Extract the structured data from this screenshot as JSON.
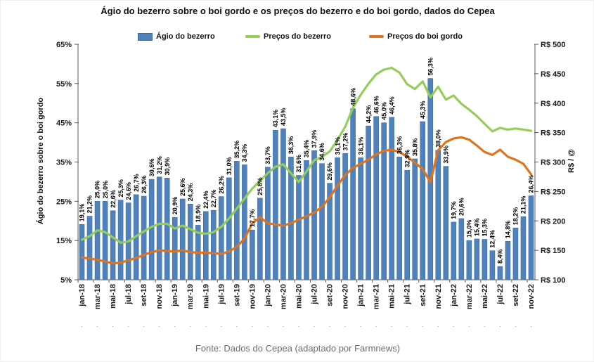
{
  "title": "Ágio do bezerro sobre o boi gordo e os preços do bezerro e do boi gordo, dados do Cepea",
  "footer": "Fonte: Dados do Cepea (adaptado por Farmnews)",
  "legend": {
    "agio": "Ágio do bezerro",
    "bezerro": "Preços do bezerro",
    "boi": "Preços do boi gordo"
  },
  "axes": {
    "left": {
      "title": "Ágio do bezerro sobre o boi gordo",
      "ticks": [
        "65%",
        "55%",
        "45%",
        "35%",
        "25%",
        "15%",
        "5%"
      ]
    },
    "right": {
      "title": "R$ / @",
      "ticks": [
        "R$ 500",
        "R$ 450",
        "R$ 400",
        "R$ 350",
        "R$ 300",
        "R$ 250",
        "R$ 200",
        "R$ 150",
        "R$ 100"
      ]
    }
  },
  "colors": {
    "bar": "#4f81bd",
    "bar_border": "#3d6da5",
    "bezerro_line": "#94ce58",
    "boi_line": "#e0731d",
    "axis": "#595959",
    "label": "#000000",
    "tick_text": "#1a1a1a",
    "dot_row": "#999999"
  },
  "chart_data": {
    "type": "bar",
    "subtype": "bar+line combo, dual axis",
    "title": "Ágio do bezerro sobre o boi gordo e os preços do bezerro e do boi gordo, dados do Cepea",
    "x": [
      "jan-18",
      "fev-18",
      "mar-18",
      "abr-18",
      "mai-18",
      "jun-18",
      "jul-18",
      "ago-18",
      "set-18",
      "out-18",
      "nov-18",
      "dez-18",
      "jan-19",
      "fev-19",
      "mar-19",
      "abr-19",
      "mai-19",
      "jun-19",
      "jul-19",
      "ago-19",
      "set-19",
      "out-19",
      "nov-19",
      "dez-19",
      "jan-20",
      "fev-20",
      "mar-20",
      "abr-20",
      "mai-20",
      "jun-20",
      "jul-20",
      "ago-20",
      "set-20",
      "out-20",
      "nov-20",
      "dez-20",
      "jan-21",
      "fev-21",
      "mar-21",
      "abr-21",
      "mai-21",
      "jun-21",
      "jul-21",
      "ago-21",
      "set-21",
      "out-21",
      "nov-21",
      "dez-21",
      "jan-22",
      "fev-22",
      "mar-22",
      "abr-22",
      "mai-22",
      "jun-22",
      "jul-22",
      "ago-22",
      "set-22",
      "out-22",
      "nov-22"
    ],
    "x_tick_step": 2,
    "left_axis_range": [
      5,
      65
    ],
    "right_axis_range": [
      100,
      500
    ],
    "ylabel_left": "Ágio do bezerro sobre o boi gordo",
    "ylabel_right": "R$ / @",
    "grid": false,
    "legend_position": "top",
    "series": [
      {
        "name": "Ágio do bezerro",
        "type": "bar",
        "axis": "left",
        "unit": "%",
        "values": [
          19.1,
          21.2,
          25.0,
          25.0,
          22.6,
          25.3,
          24.6,
          26.7,
          26.3,
          30.6,
          31.2,
          30.9,
          20.9,
          25.6,
          24.3,
          18.9,
          22.4,
          22.7,
          26.2,
          31.0,
          35.2,
          34.3,
          17.7,
          25.8,
          33.7,
          43.1,
          43.5,
          36.3,
          31.6,
          35.4,
          37.9,
          34.6,
          29.6,
          36.1,
          37.2,
          48.6,
          36.1,
          44.2,
          46.6,
          45.0,
          46.4,
          36.3,
          32.9,
          35.8,
          45.3,
          56.3,
          38.0,
          33.9,
          19.7,
          20.6,
          15.0,
          15.4,
          15.3,
          12.4,
          8.4,
          14.8,
          18.2,
          21.1,
          26.4
        ]
      },
      {
        "name": "Preços do bezerro",
        "type": "line",
        "axis": "right",
        "unit": "R$",
        "values": [
          168,
          174,
          184,
          181,
          172,
          163,
          165,
          174,
          182,
          190,
          195,
          195,
          187,
          192,
          186,
          180,
          178,
          181,
          190,
          204,
          221,
          238,
          255,
          268,
          281,
          292,
          296,
          281,
          266,
          284,
          303,
          309,
          318,
          338,
          360,
          392,
          414,
          433,
          449,
          457,
          460,
          452,
          432,
          424,
          437,
          410,
          428,
          406,
          413,
          399,
          389,
          378,
          365,
          352,
          358,
          355,
          357,
          355,
          353
        ]
      },
      {
        "name": "Preços do boi gordo",
        "type": "line",
        "axis": "right",
        "unit": "R$",
        "values": [
          138,
          136,
          134,
          131,
          128,
          129,
          133,
          137,
          142,
          147,
          150,
          149,
          148,
          150,
          147,
          146,
          146,
          145,
          144,
          148,
          156,
          170,
          196,
          206,
          196,
          194,
          192,
          196,
          202,
          208,
          214,
          224,
          240,
          260,
          278,
          290,
          297,
          304,
          313,
          319,
          321,
          317,
          309,
          299,
          288,
          266,
          320,
          334,
          340,
          342,
          338,
          328,
          317,
          312,
          321,
          309,
          304,
          297,
          279
        ]
      }
    ]
  }
}
